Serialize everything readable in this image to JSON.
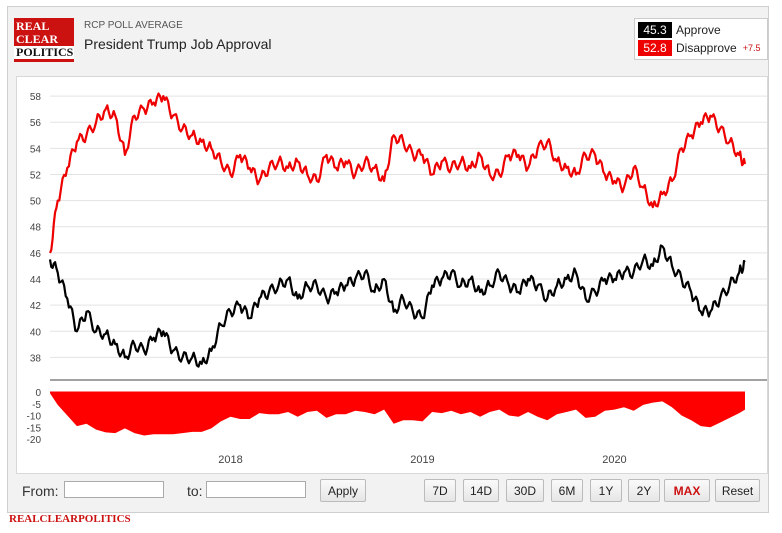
{
  "header": {
    "logo_lines": [
      "REAL",
      "CLEAR",
      "POLITICS"
    ],
    "kicker": "RCP POLL AVERAGE",
    "title": "President Trump Job Approval"
  },
  "legend": {
    "approve_value": "45.3",
    "approve_label": "Approve",
    "disapprove_value": "52.8",
    "disapprove_label": "Disapprove",
    "spread": "+7.5"
  },
  "colors": {
    "approve": "#000000",
    "disapprove": "#ee0000",
    "brand": "#cc1111"
  },
  "controls": {
    "from_label": "From:",
    "to_label": "to:",
    "from_value": "",
    "to_value": "",
    "apply_label": "Apply",
    "ranges": [
      "7D",
      "14D",
      "30D",
      "6M",
      "1Y",
      "2Y",
      "MAX",
      "Reset"
    ],
    "active_range": "MAX"
  },
  "footer": {
    "brand_text": "REALCLEARPOLITICS"
  },
  "chart_data": {
    "type": "line",
    "title": "President Trump Job Approval",
    "x_tick_labels": [
      "2018",
      "2019",
      "2020"
    ],
    "x_ticks_year": [
      2018,
      2019,
      2020
    ],
    "x_range": [
      2017.06,
      2020.68
    ],
    "y_ticks": [
      38,
      40,
      42,
      44,
      46,
      48,
      50,
      52,
      54,
      56,
      58
    ],
    "ylim": [
      36.5,
      59
    ],
    "grid": true,
    "legend_position": "top-right",
    "x": [
      2017.06,
      2017.1,
      2017.15,
      2017.2,
      2017.25,
      2017.3,
      2017.35,
      2017.4,
      2017.45,
      2017.5,
      2017.55,
      2017.6,
      2017.65,
      2017.7,
      2017.75,
      2017.8,
      2017.85,
      2017.9,
      2017.95,
      2018.0,
      2018.05,
      2018.1,
      2018.15,
      2018.2,
      2018.25,
      2018.3,
      2018.35,
      2018.4,
      2018.45,
      2018.5,
      2018.55,
      2018.6,
      2018.65,
      2018.7,
      2018.75,
      2018.8,
      2018.85,
      2018.9,
      2018.95,
      2019.0,
      2019.05,
      2019.1,
      2019.15,
      2019.2,
      2019.25,
      2019.3,
      2019.35,
      2019.4,
      2019.45,
      2019.5,
      2019.55,
      2019.6,
      2019.65,
      2019.7,
      2019.75,
      2019.8,
      2019.85,
      2019.9,
      2019.95,
      2020.0,
      2020.05,
      2020.1,
      2020.15,
      2020.2,
      2020.25,
      2020.3,
      2020.35,
      2020.4,
      2020.45,
      2020.5,
      2020.55,
      2020.6,
      2020.65,
      2020.68
    ],
    "series": [
      {
        "name": "Approve",
        "color": "#000000",
        "values": [
          45.5,
          44.5,
          42.5,
          40.0,
          41.5,
          40.0,
          39.8,
          39.0,
          38.0,
          39.0,
          38.5,
          39.5,
          40.0,
          38.5,
          38.0,
          38.0,
          37.5,
          38.5,
          40.5,
          41.5,
          42.0,
          41.0,
          42.5,
          43.0,
          43.5,
          44.0,
          42.5,
          43.5,
          43.5,
          42.5,
          43.0,
          43.5,
          44.0,
          44.5,
          43.0,
          44.0,
          41.5,
          42.5,
          41.5,
          41.0,
          43.5,
          44.0,
          44.5,
          43.5,
          44.0,
          43.0,
          43.5,
          44.5,
          43.5,
          43.0,
          44.0,
          43.5,
          42.5,
          43.5,
          44.0,
          44.5,
          42.5,
          43.0,
          44.0,
          44.0,
          44.5,
          44.5,
          45.5,
          45.0,
          46.5,
          45.0,
          44.0,
          43.0,
          41.5,
          41.5,
          42.5,
          43.5,
          44.5,
          45.3
        ]
      },
      {
        "name": "Disapprove",
        "color": "#ee0000",
        "values": [
          46.0,
          50.0,
          52.5,
          54.5,
          55.0,
          56.0,
          57.0,
          56.5,
          53.5,
          56.5,
          57.0,
          57.5,
          58.0,
          56.5,
          55.5,
          55.0,
          54.5,
          54.0,
          53.0,
          52.0,
          53.5,
          52.5,
          51.5,
          52.5,
          53.0,
          52.5,
          53.0,
          52.0,
          51.5,
          53.5,
          52.5,
          53.0,
          52.0,
          53.0,
          52.5,
          51.5,
          55.0,
          54.5,
          53.5,
          53.5,
          52.0,
          53.0,
          52.5,
          53.0,
          52.5,
          53.5,
          52.0,
          52.0,
          53.5,
          53.5,
          52.5,
          54.0,
          54.5,
          53.0,
          52.5,
          52.0,
          53.5,
          53.5,
          52.0,
          51.5,
          51.0,
          52.5,
          51.0,
          49.5,
          50.5,
          51.5,
          54.0,
          55.0,
          56.0,
          56.5,
          55.5,
          54.5,
          53.5,
          52.8
        ]
      }
    ],
    "spread": {
      "name": "Spread",
      "y_ticks": [
        0,
        -5,
        -10,
        -15,
        -20
      ],
      "ylim": [
        -20,
        0
      ],
      "values": [
        -0.5,
        -5.5,
        -10.0,
        -14.5,
        -13.5,
        -16.0,
        -17.2,
        -17.5,
        -15.5,
        -17.5,
        -18.5,
        -18.0,
        -18.0,
        -18.0,
        -17.5,
        -17.0,
        -17.0,
        -15.5,
        -12.5,
        -10.5,
        -11.5,
        -11.5,
        -9.0,
        -9.5,
        -9.5,
        -8.5,
        -10.5,
        -8.5,
        -8.0,
        -11.0,
        -9.5,
        -9.5,
        -8.0,
        -8.5,
        -9.5,
        -7.5,
        -13.5,
        -12.0,
        -12.0,
        -12.5,
        -8.5,
        -9.0,
        -8.0,
        -9.5,
        -8.5,
        -10.5,
        -8.5,
        -7.5,
        -10.0,
        -10.5,
        -8.5,
        -10.5,
        -12.0,
        -9.5,
        -8.5,
        -7.5,
        -11.0,
        -10.5,
        -8.0,
        -7.5,
        -6.5,
        -8.0,
        -5.5,
        -4.5,
        -4.0,
        -6.5,
        -10.0,
        -12.0,
        -14.5,
        -15.0,
        -13.0,
        -11.0,
        -9.0,
        -7.5
      ]
    }
  }
}
